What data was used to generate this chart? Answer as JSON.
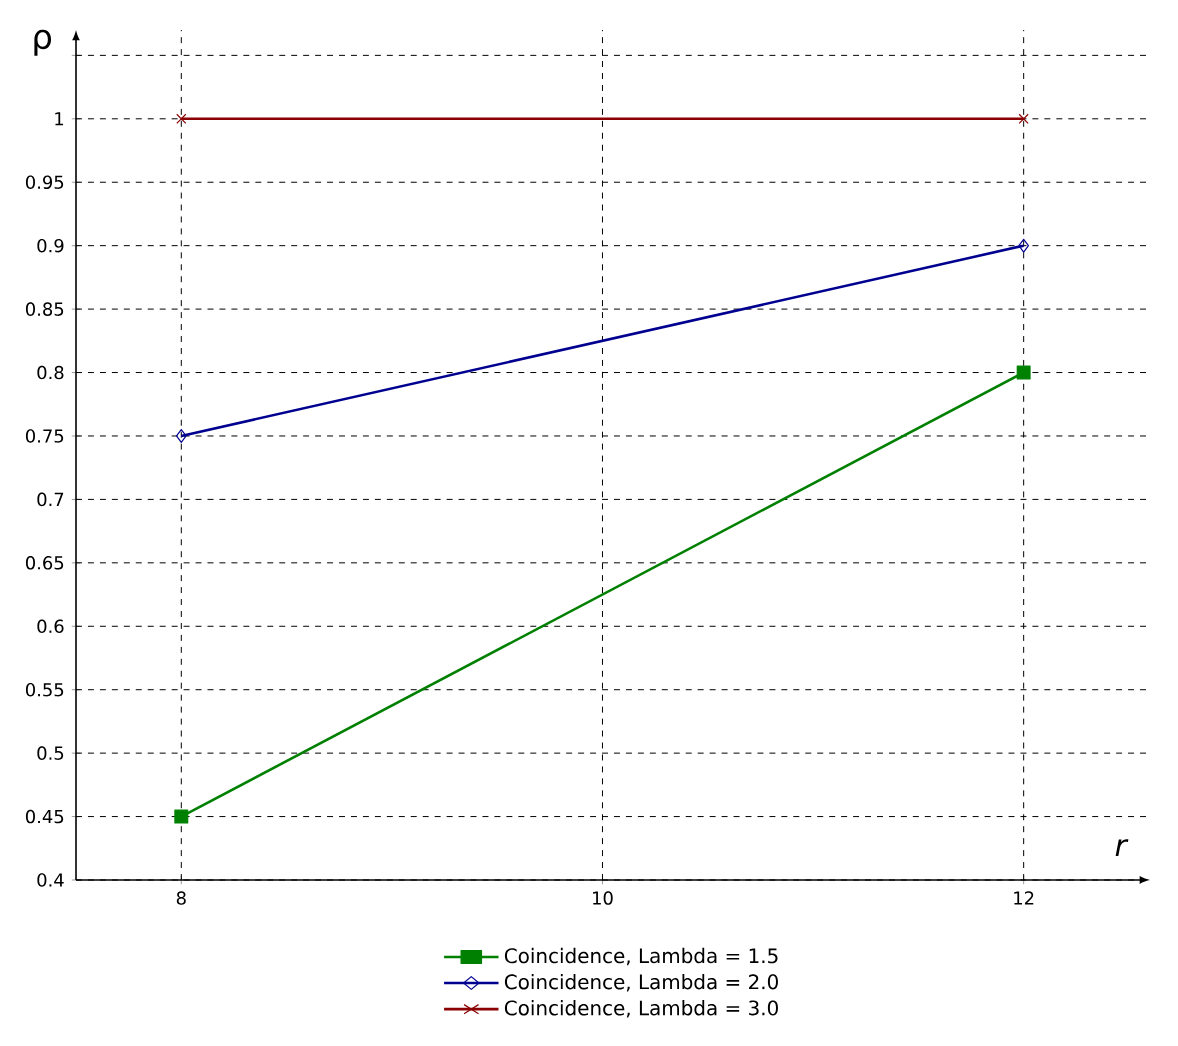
{
  "chart_data": {
    "type": "line",
    "xlabel": "r",
    "ylabel": "ρ",
    "x": [
      8,
      12
    ],
    "series": [
      {
        "name": "Coincidence, Lambda = 1.5",
        "color": "#008000",
        "marker": "square",
        "values": [
          0.45,
          0.8
        ]
      },
      {
        "name": "Coincidence, Lambda = 2.0",
        "color": "#000090",
        "marker": "diamond",
        "values": [
          0.75,
          0.9
        ]
      },
      {
        "name": "Coincidence, Lambda = 3.0",
        "color": "#8b0000",
        "marker": "cross",
        "values": [
          1,
          1
        ]
      }
    ],
    "xlim": [
      7.5,
      12.6
    ],
    "ylim": [
      0.4,
      1.07
    ],
    "xticks": [
      8,
      10,
      12
    ],
    "yticks": [
      0.4,
      0.45,
      0.5,
      0.55,
      0.6,
      0.65,
      0.7,
      0.75,
      0.8,
      0.85,
      0.9,
      0.95,
      1,
      {
        "value": 1.05,
        "label": null
      }
    ],
    "grid": true,
    "legend": "bottom",
    "line_style": "solid"
  }
}
